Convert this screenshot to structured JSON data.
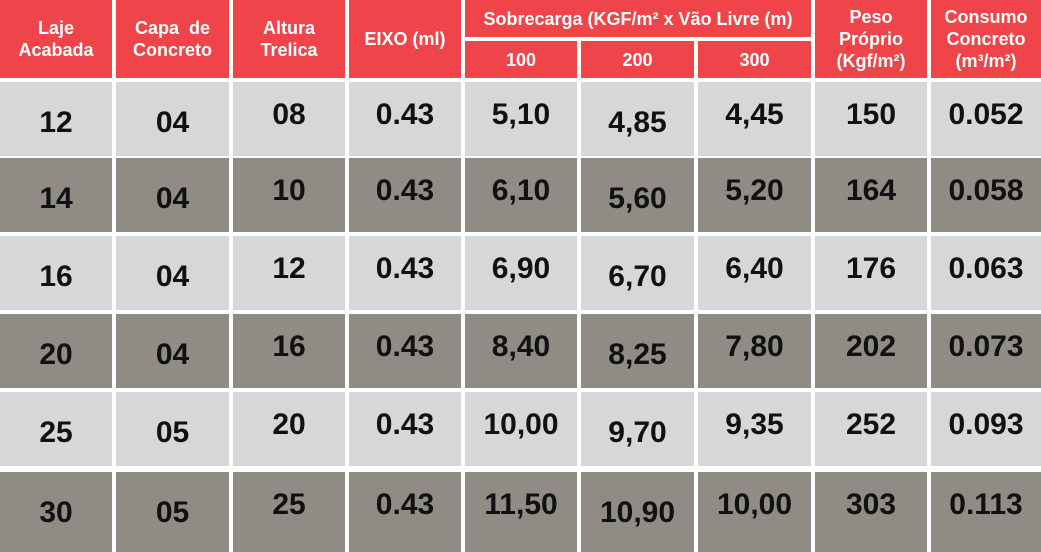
{
  "header": {
    "laje": [
      "Laje",
      "Acabada"
    ],
    "capa": [
      "Capa  de",
      "Concreto"
    ],
    "altura": [
      "Altura",
      "Trelica"
    ],
    "eixo": "EIXO (ml)",
    "sobrecarga": "Sobrecarga (KGF/m² x Vão Livre (m)",
    "sub": [
      "100",
      "200",
      "300"
    ],
    "peso": [
      "Peso",
      "Próprio",
      "(Kgf/m²)"
    ],
    "consumo": [
      "Consumo",
      "Concreto",
      "(m³/m²)"
    ]
  },
  "rows": [
    {
      "laje": "12",
      "capa": "04",
      "altura": "08",
      "eixo": "0.43",
      "s100": "5,10",
      "s200": "4,85",
      "s300": "4,45",
      "peso": "150",
      "consumo": "0.052"
    },
    {
      "laje": "14",
      "capa": "04",
      "altura": "10",
      "eixo": "0.43",
      "s100": "6,10",
      "s200": "5,60",
      "s300": "5,20",
      "peso": "164",
      "consumo": "0.058"
    },
    {
      "laje": "16",
      "capa": "04",
      "altura": "12",
      "eixo": "0.43",
      "s100": "6,90",
      "s200": "6,70",
      "s300": "6,40",
      "peso": "176",
      "consumo": "0.063"
    },
    {
      "laje": "20",
      "capa": "04",
      "altura": "16",
      "eixo": "0.43",
      "s100": "8,40",
      "s200": "8,25",
      "s300": "7,80",
      "peso": "202",
      "consumo": "0.073"
    },
    {
      "laje": "25",
      "capa": "05",
      "altura": "20",
      "eixo": "0.43",
      "s100": "10,00",
      "s200": "9,70",
      "s300": "9,35",
      "peso": "252",
      "consumo": "0.093"
    },
    {
      "laje": "30",
      "capa": "05",
      "altura": "25",
      "eixo": "0.43",
      "s100": "11,50",
      "s200": "10,90",
      "s300": "10,00",
      "peso": "303",
      "consumo": "0.113"
    }
  ],
  "colors": {
    "header": "#ee444a",
    "row_light": "#d6d7d9",
    "row_dark": "#8f8b85"
  }
}
